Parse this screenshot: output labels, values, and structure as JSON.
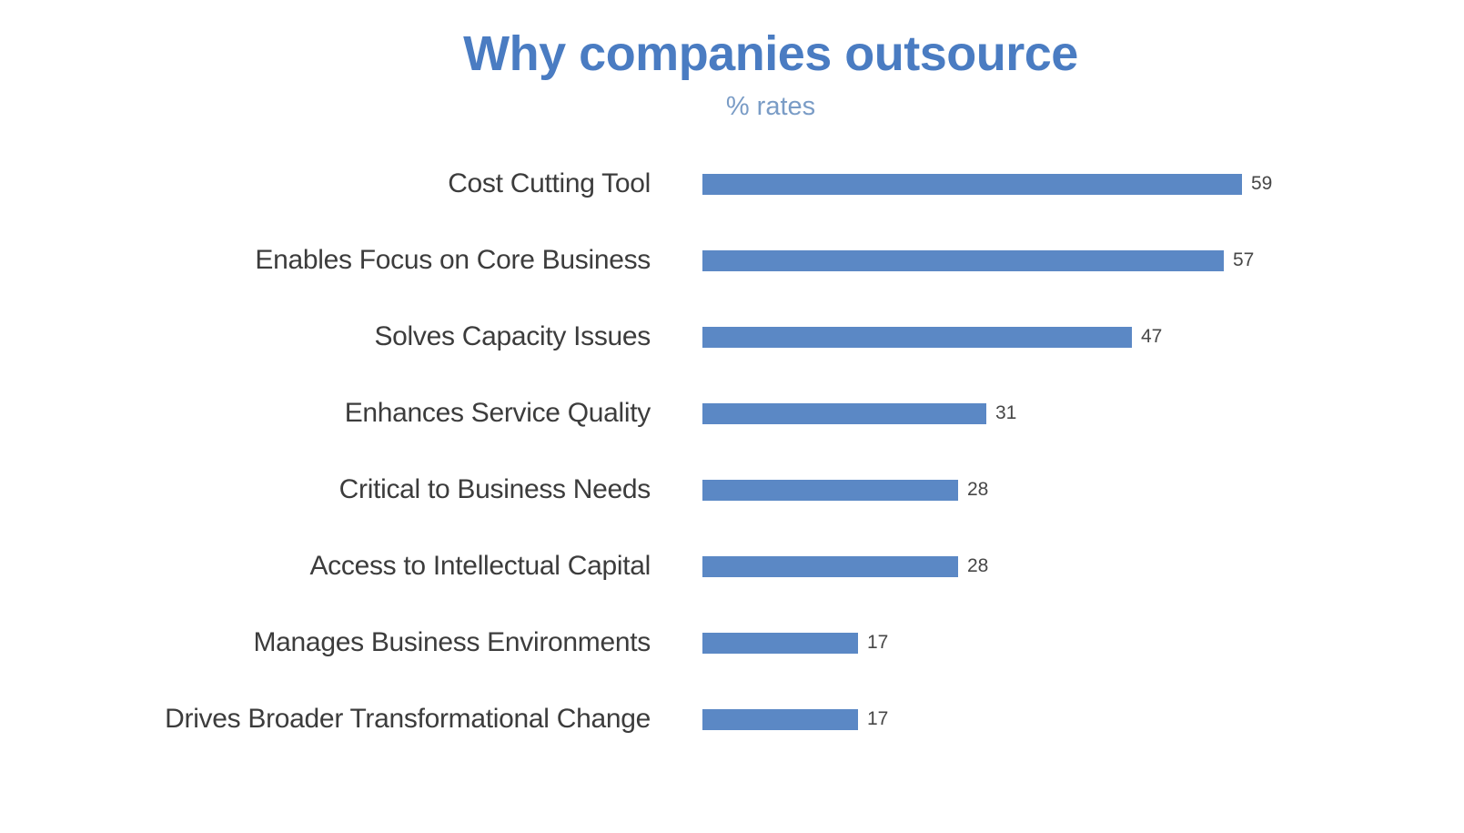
{
  "header": {
    "title": "Why companies outsource",
    "subtitle": "% rates"
  },
  "colors": {
    "title_text": "#4a7cc2",
    "subtitle_text": "#7a9cc6",
    "bar_fill": "#5b88c5",
    "category_text": "#3c3c3c",
    "value_text": "#474747",
    "background": "#ffffff"
  },
  "chart_data": {
    "type": "bar",
    "orientation": "horizontal",
    "title": "Why companies outsource",
    "subtitle": "% rates",
    "categories": [
      "Cost Cutting Tool",
      "Enables Focus on Core Business",
      "Solves Capacity Issues",
      "Enhances Service Quality",
      "Critical to Business Needs",
      "Access to Intellectual Capital",
      "Manages Business Environments",
      "Drives Broader Transformational Change"
    ],
    "values": [
      59,
      57,
      47,
      31,
      28,
      28,
      17,
      17
    ],
    "xlabel": "",
    "ylabel": "",
    "xlim": [
      0,
      60
    ],
    "grid": false,
    "legend": false,
    "value_labels": true,
    "unit": "%"
  }
}
